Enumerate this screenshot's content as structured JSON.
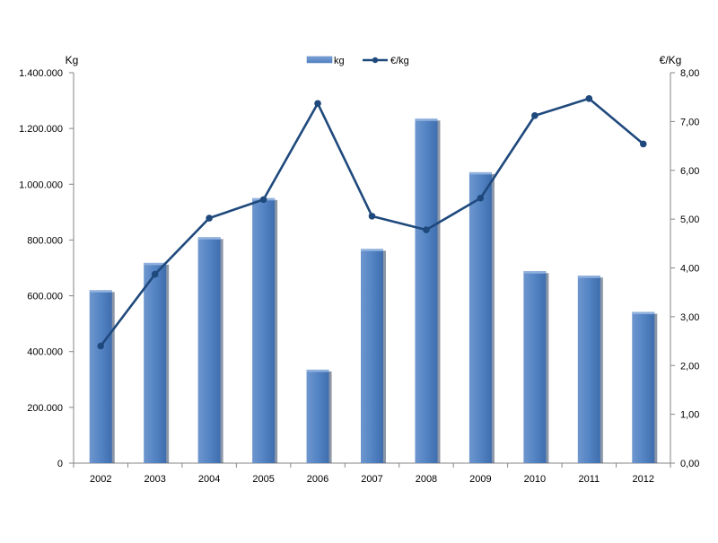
{
  "chart_data": {
    "type": "bar",
    "categories": [
      "2002",
      "2003",
      "2004",
      "2005",
      "2006",
      "2007",
      "2008",
      "2009",
      "2010",
      "2011",
      "2012"
    ],
    "series": [
      {
        "name": "kg",
        "type": "bar",
        "axis": "left",
        "color": "#4F81BD",
        "values": [
          620000,
          718000,
          810000,
          950000,
          335000,
          768000,
          1235000,
          1043000,
          688000,
          672000,
          542000
        ]
      },
      {
        "name": "€/kg",
        "type": "line",
        "axis": "right",
        "color": "#1F497D",
        "values": [
          2.4,
          3.87,
          5.02,
          5.4,
          7.37,
          5.06,
          4.78,
          5.43,
          7.12,
          7.47,
          6.54
        ]
      }
    ],
    "left_axis": {
      "label": "Kg",
      "ylim": [
        0,
        1400000
      ],
      "ticks": [
        "0",
        "200.000",
        "400.000",
        "600.000",
        "800.000",
        "1.000.000",
        "1.200.000",
        "1.400.000"
      ]
    },
    "right_axis": {
      "label": "€/Kg",
      "ylim": [
        0,
        8
      ],
      "ticks": [
        "0,00",
        "1,00",
        "2,00",
        "3,00",
        "4,00",
        "5,00",
        "6,00",
        "7,00",
        "8,00"
      ]
    },
    "legend": {
      "position": "top-center",
      "entries": [
        "kg",
        "€/kg"
      ]
    },
    "grid": false
  }
}
